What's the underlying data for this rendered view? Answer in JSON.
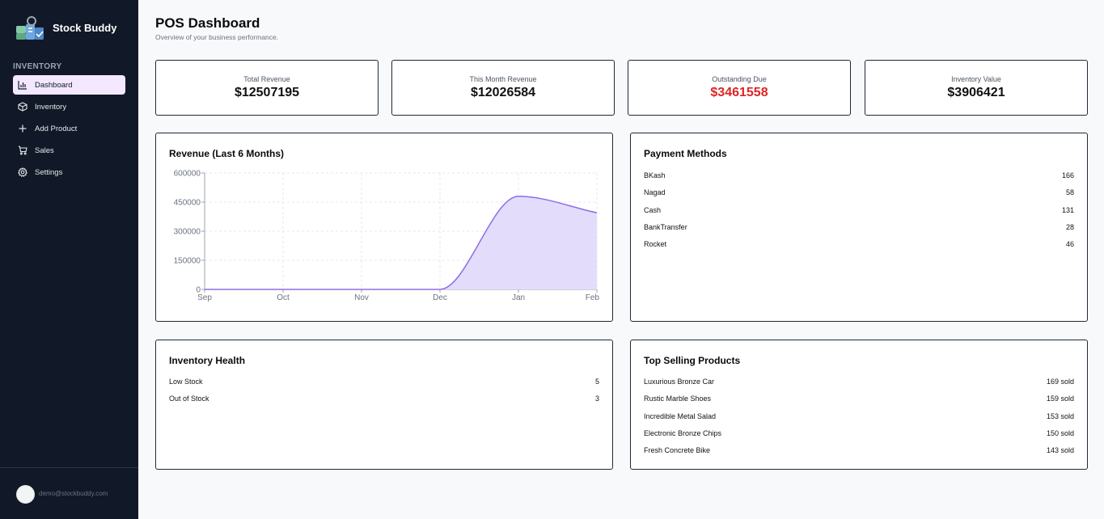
{
  "app": {
    "name": "Stock Buddy"
  },
  "sidebar": {
    "section_label": "INVENTORY",
    "items": [
      {
        "label": "Dashboard",
        "icon": "bar-chart-icon",
        "active": true
      },
      {
        "label": "Inventory",
        "icon": "package-icon",
        "active": false
      },
      {
        "label": "Add Product",
        "icon": "plus-icon",
        "active": false
      },
      {
        "label": "Sales",
        "icon": "cart-icon",
        "active": false
      },
      {
        "label": "Settings",
        "icon": "gear-icon",
        "active": false
      }
    ],
    "user_email": "demo@stockbuddy.com"
  },
  "header": {
    "title": "POS Dashboard",
    "subtitle": "Overview of your business performance."
  },
  "stats": [
    {
      "label": "Total Revenue",
      "value": "$12507195",
      "color": "#111111"
    },
    {
      "label": "This Month Revenue",
      "value": "$12026584",
      "color": "#111111"
    },
    {
      "label": "Outstanding Due",
      "value": "$3461558",
      "color": "#dc2626"
    },
    {
      "label": "Inventory Value",
      "value": "$3906421",
      "color": "#111111"
    }
  ],
  "revenue_panel": {
    "title": "Revenue (Last 6 Months)"
  },
  "chart_data": {
    "type": "area",
    "title": "Revenue (Last 6 Months)",
    "categories": [
      "Sep",
      "Oct",
      "Nov",
      "Dec",
      "Jan",
      "Feb"
    ],
    "series": [
      {
        "values": [
          0,
          0,
          0,
          0,
          480000,
          395000
        ]
      }
    ],
    "yticks": [
      "0",
      "150000",
      "300000",
      "450000",
      "600000"
    ],
    "ylim": [
      0,
      600000
    ],
    "grid": true,
    "line_color": "#8b6ee8",
    "fill_color": "#e4dcfb"
  },
  "payment_methods": {
    "title": "Payment Methods",
    "rows": [
      {
        "label": "BKash",
        "value": "166"
      },
      {
        "label": "Nagad",
        "value": "58"
      },
      {
        "label": "Cash",
        "value": "131"
      },
      {
        "label": "BankTransfer",
        "value": "28"
      },
      {
        "label": "Rocket",
        "value": "46"
      }
    ]
  },
  "inventory_health": {
    "title": "Inventory Health",
    "rows": [
      {
        "label": "Low Stock",
        "value": "5"
      },
      {
        "label": "Out of Stock",
        "value": "3"
      }
    ]
  },
  "top_selling": {
    "title": "Top Selling Products",
    "rows": [
      {
        "label": "Luxurious Bronze Car",
        "value": "169 sold"
      },
      {
        "label": "Rustic Marble Shoes",
        "value": "159 sold"
      },
      {
        "label": "Incredible Metal Salad",
        "value": "153 sold"
      },
      {
        "label": "Electronic Bronze Chips",
        "value": "150 sold"
      },
      {
        "label": "Fresh Concrete Bike",
        "value": "143 sold"
      }
    ]
  }
}
